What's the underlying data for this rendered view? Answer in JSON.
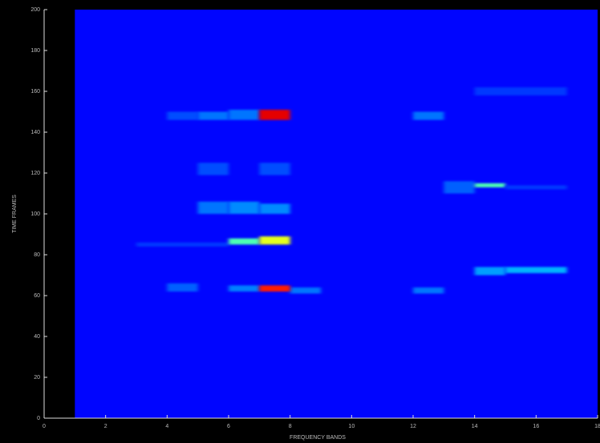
{
  "chart_data": {
    "type": "heatmap",
    "xlabel": "FREQUENCY BANDS",
    "ylabel": "TIME FRAMES",
    "xlim": [
      0,
      18
    ],
    "ylim": [
      0,
      200
    ],
    "xticks": [
      0,
      2,
      4,
      6,
      8,
      10,
      12,
      14,
      16,
      18
    ],
    "yticks": [
      0,
      20,
      40,
      60,
      80,
      100,
      120,
      140,
      160,
      180,
      200
    ],
    "clim": [
      0,
      1
    ],
    "colormap": "jet",
    "cells": [
      [
        1,
        18,
        0,
        200,
        0.13
      ],
      [
        4,
        5,
        62,
        66,
        0.22
      ],
      [
        6,
        7,
        62,
        65,
        0.25
      ],
      [
        8,
        9,
        61,
        64,
        0.24
      ],
      [
        7,
        8,
        62,
        65,
        0.85
      ],
      [
        3,
        6,
        84,
        86,
        0.18
      ],
      [
        6,
        7,
        85,
        88,
        0.45
      ],
      [
        7,
        8,
        85,
        89,
        0.6
      ],
      [
        5,
        6,
        100,
        106,
        0.24
      ],
      [
        6,
        7,
        100,
        106,
        0.26
      ],
      [
        7,
        8,
        100,
        105,
        0.26
      ],
      [
        5,
        6,
        119,
        125,
        0.2
      ],
      [
        7,
        8,
        119,
        125,
        0.2
      ],
      [
        4,
        5,
        146,
        150,
        0.2
      ],
      [
        5,
        6,
        146,
        150,
        0.24
      ],
      [
        6,
        7,
        146,
        151,
        0.24
      ],
      [
        7,
        8,
        146,
        151,
        0.9
      ],
      [
        12,
        13,
        146,
        150,
        0.24
      ],
      [
        12,
        13,
        61,
        64,
        0.24
      ],
      [
        13,
        14,
        110,
        116,
        0.22
      ],
      [
        14,
        15,
        113,
        115,
        0.45
      ],
      [
        15,
        17,
        112,
        114,
        0.18
      ],
      [
        14,
        15,
        70,
        74,
        0.28
      ],
      [
        15,
        17,
        71,
        74,
        0.3
      ],
      [
        14,
        17,
        158,
        162,
        0.18
      ]
    ]
  }
}
